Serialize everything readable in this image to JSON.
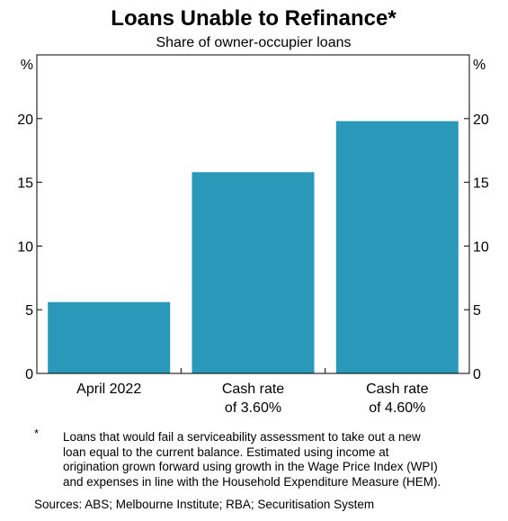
{
  "chart_data": {
    "type": "bar",
    "title": "Loans Unable to Refinance*",
    "subtitle": "Share of owner-occupier loans",
    "ylabel_left": "%",
    "ylabel_right": "%",
    "ylim": [
      0,
      25
    ],
    "yticks": [
      0,
      5,
      10,
      15,
      20
    ],
    "grid": false,
    "categories": [
      [
        "April 2022"
      ],
      [
        "Cash rate",
        "of 3.60%"
      ],
      [
        "Cash rate",
        "of 4.60%"
      ]
    ],
    "values": [
      5.6,
      15.8,
      19.8
    ],
    "bar_color": "#2a98b8"
  },
  "footnote": {
    "marker": "*",
    "lines": [
      "Loans that would fail a serviceability assessment to take out a new",
      "loan equal to the current balance. Estimated using income at",
      "origination grown forward using growth in the Wage Price Index (WPI)",
      "and expenses in line with the Household Expenditure Measure (HEM)."
    ]
  },
  "sources": "Sources: ABS; Melbourne Institute; RBA; Securitisation System"
}
